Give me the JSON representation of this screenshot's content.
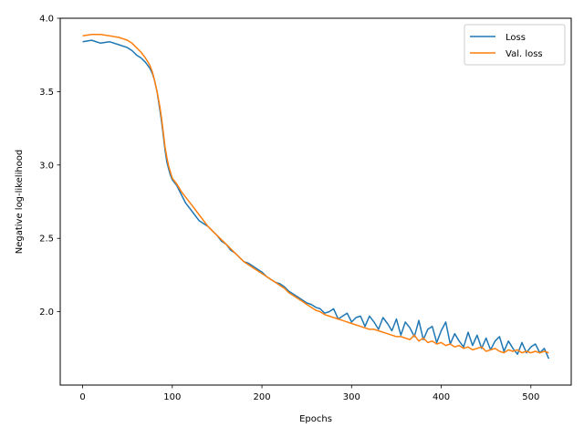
{
  "chart_data": {
    "type": "line",
    "title": "",
    "xlabel": "Epochs",
    "ylabel": "Negative log-likelihood",
    "xlim": [
      -25,
      545
    ],
    "ylim": [
      1.5,
      4.0
    ],
    "xticks": [
      0,
      100,
      200,
      300,
      400,
      500
    ],
    "yticks": [
      2.0,
      2.5,
      3.0,
      3.5,
      4.0
    ],
    "xtick_labels": [
      "0",
      "100",
      "200",
      "300",
      "400",
      "500"
    ],
    "ytick_labels": [
      "2.0",
      "2.5",
      "3.0",
      "3.5",
      "4.0"
    ],
    "grid": false,
    "legend_position": "top-right",
    "series": [
      {
        "name": "Loss",
        "color": "#1f77b4",
        "x": [
          0,
          10,
          20,
          30,
          40,
          50,
          55,
          60,
          65,
          70,
          75,
          78,
          80,
          83,
          86,
          88,
          90,
          92,
          94,
          96,
          98,
          100,
          105,
          110,
          115,
          120,
          125,
          130,
          135,
          140,
          145,
          150,
          155,
          160,
          165,
          170,
          175,
          180,
          185,
          190,
          195,
          200,
          205,
          210,
          215,
          220,
          225,
          230,
          235,
          240,
          245,
          250,
          255,
          260,
          265,
          270,
          275,
          280,
          285,
          290,
          295,
          300,
          305,
          310,
          315,
          320,
          325,
          330,
          335,
          340,
          345,
          350,
          355,
          360,
          365,
          370,
          375,
          380,
          385,
          390,
          395,
          400,
          405,
          410,
          415,
          420,
          425,
          430,
          435,
          440,
          445,
          450,
          455,
          460,
          465,
          470,
          475,
          480,
          485,
          490,
          495,
          500,
          505,
          510,
          515,
          520
        ],
        "y": [
          3.84,
          3.85,
          3.83,
          3.84,
          3.82,
          3.8,
          3.78,
          3.75,
          3.73,
          3.7,
          3.66,
          3.62,
          3.58,
          3.5,
          3.38,
          3.3,
          3.2,
          3.1,
          3.02,
          2.97,
          2.93,
          2.9,
          2.86,
          2.8,
          2.74,
          2.7,
          2.66,
          2.62,
          2.6,
          2.58,
          2.55,
          2.52,
          2.48,
          2.46,
          2.42,
          2.4,
          2.37,
          2.34,
          2.33,
          2.31,
          2.29,
          2.27,
          2.24,
          2.22,
          2.2,
          2.19,
          2.17,
          2.14,
          2.12,
          2.1,
          2.08,
          2.06,
          2.05,
          2.03,
          2.02,
          1.99,
          2.0,
          2.02,
          1.95,
          1.97,
          1.99,
          1.93,
          1.96,
          1.97,
          1.9,
          1.97,
          1.93,
          1.88,
          1.96,
          1.92,
          1.87,
          1.95,
          1.84,
          1.93,
          1.89,
          1.83,
          1.94,
          1.81,
          1.88,
          1.9,
          1.79,
          1.87,
          1.93,
          1.78,
          1.85,
          1.8,
          1.76,
          1.86,
          1.77,
          1.84,
          1.75,
          1.82,
          1.74,
          1.8,
          1.83,
          1.73,
          1.8,
          1.75,
          1.71,
          1.79,
          1.72,
          1.76,
          1.78,
          1.72,
          1.75,
          1.68
        ]
      },
      {
        "name": "Val. loss",
        "color": "#ff7f0e",
        "x": [
          0,
          10,
          20,
          30,
          40,
          50,
          55,
          60,
          65,
          70,
          75,
          78,
          80,
          83,
          86,
          88,
          90,
          92,
          94,
          96,
          98,
          100,
          105,
          110,
          115,
          120,
          125,
          130,
          135,
          140,
          145,
          150,
          155,
          160,
          165,
          170,
          175,
          180,
          185,
          190,
          195,
          200,
          205,
          210,
          215,
          220,
          225,
          230,
          235,
          240,
          245,
          250,
          255,
          260,
          265,
          270,
          275,
          280,
          285,
          290,
          295,
          300,
          305,
          310,
          315,
          320,
          325,
          330,
          335,
          340,
          345,
          350,
          355,
          360,
          365,
          370,
          375,
          380,
          385,
          390,
          395,
          400,
          405,
          410,
          415,
          420,
          425,
          430,
          435,
          440,
          445,
          450,
          455,
          460,
          465,
          470,
          475,
          480,
          485,
          490,
          495,
          500,
          505,
          510,
          515,
          520
        ],
        "y": [
          3.88,
          3.89,
          3.89,
          3.88,
          3.87,
          3.85,
          3.83,
          3.8,
          3.77,
          3.73,
          3.68,
          3.63,
          3.58,
          3.5,
          3.4,
          3.32,
          3.22,
          3.12,
          3.05,
          2.99,
          2.95,
          2.91,
          2.87,
          2.82,
          2.78,
          2.74,
          2.7,
          2.66,
          2.62,
          2.58,
          2.55,
          2.52,
          2.49,
          2.46,
          2.43,
          2.4,
          2.37,
          2.34,
          2.32,
          2.3,
          2.28,
          2.26,
          2.24,
          2.22,
          2.2,
          2.18,
          2.16,
          2.13,
          2.11,
          2.09,
          2.07,
          2.05,
          2.03,
          2.01,
          2.0,
          1.98,
          1.97,
          1.96,
          1.95,
          1.94,
          1.93,
          1.92,
          1.91,
          1.9,
          1.89,
          1.88,
          1.88,
          1.87,
          1.86,
          1.85,
          1.84,
          1.83,
          1.83,
          1.82,
          1.81,
          1.84,
          1.8,
          1.82,
          1.79,
          1.8,
          1.78,
          1.79,
          1.77,
          1.78,
          1.76,
          1.77,
          1.75,
          1.76,
          1.74,
          1.75,
          1.76,
          1.73,
          1.74,
          1.75,
          1.73,
          1.72,
          1.74,
          1.73,
          1.74,
          1.72,
          1.73,
          1.72,
          1.73,
          1.72,
          1.73,
          1.72
        ]
      }
    ]
  }
}
